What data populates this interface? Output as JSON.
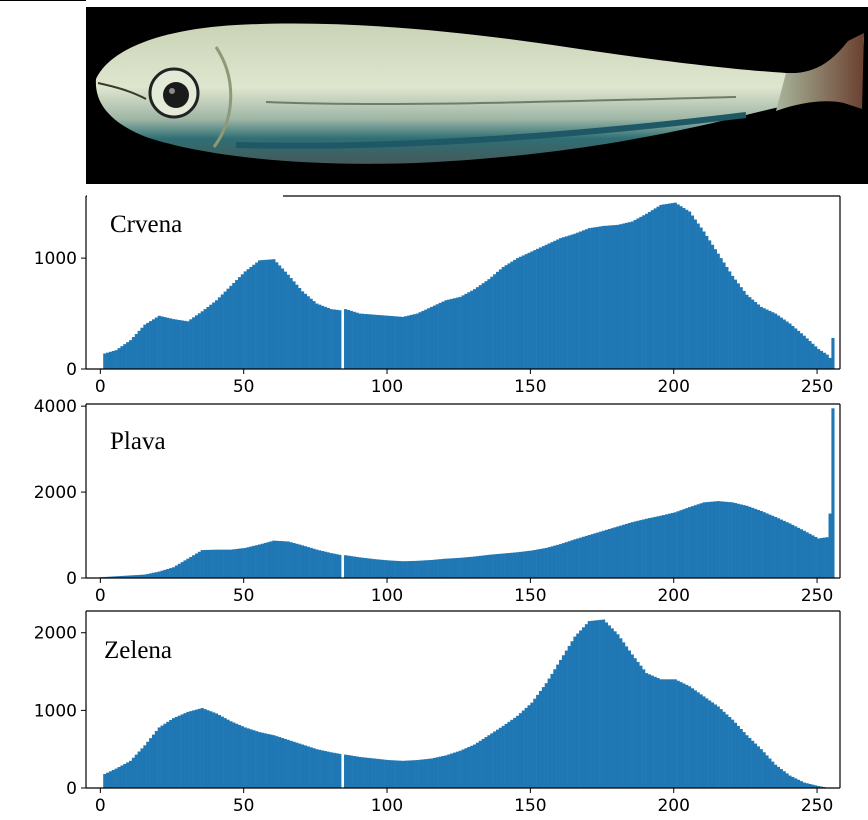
{
  "photo": {
    "subject": "fish",
    "bg": "#000000"
  },
  "colors": {
    "bar": "#1f77b4",
    "axis": "#000000",
    "bg": "#ffffff"
  },
  "chart_data": [
    {
      "type": "bar",
      "title": "Crvena",
      "xlabel": "",
      "ylabel": "",
      "xlim": [
        -5,
        258
      ],
      "ylim": [
        0,
        1560
      ],
      "xticks": [
        0,
        50,
        100,
        150,
        200,
        250
      ],
      "yticks": [
        0,
        1000
      ],
      "profile": [
        [
          0,
          5
        ],
        [
          1,
          140
        ],
        [
          5,
          170
        ],
        [
          10,
          260
        ],
        [
          15,
          400
        ],
        [
          20,
          480
        ],
        [
          25,
          450
        ],
        [
          30,
          430
        ],
        [
          35,
          520
        ],
        [
          40,
          620
        ],
        [
          45,
          750
        ],
        [
          50,
          880
        ],
        [
          55,
          980
        ],
        [
          60,
          990
        ],
        [
          65,
          850
        ],
        [
          70,
          700
        ],
        [
          75,
          590
        ],
        [
          80,
          540
        ],
        [
          83,
          530
        ],
        [
          84,
          0
        ],
        [
          85,
          540
        ],
        [
          90,
          500
        ],
        [
          95,
          490
        ],
        [
          100,
          480
        ],
        [
          105,
          470
        ],
        [
          110,
          500
        ],
        [
          115,
          560
        ],
        [
          120,
          620
        ],
        [
          125,
          650
        ],
        [
          130,
          720
        ],
        [
          135,
          810
        ],
        [
          140,
          920
        ],
        [
          145,
          1000
        ],
        [
          150,
          1060
        ],
        [
          155,
          1120
        ],
        [
          160,
          1180
        ],
        [
          165,
          1220
        ],
        [
          170,
          1270
        ],
        [
          175,
          1290
        ],
        [
          180,
          1300
        ],
        [
          185,
          1330
        ],
        [
          190,
          1400
        ],
        [
          195,
          1480
        ],
        [
          200,
          1500
        ],
        [
          205,
          1420
        ],
        [
          210,
          1240
        ],
        [
          215,
          1040
        ],
        [
          220,
          840
        ],
        [
          225,
          670
        ],
        [
          230,
          560
        ],
        [
          235,
          500
        ],
        [
          240,
          410
        ],
        [
          245,
          300
        ],
        [
          250,
          180
        ],
        [
          253,
          130
        ],
        [
          254,
          100
        ],
        [
          255,
          280
        ]
      ]
    },
    {
      "type": "bar",
      "title": "Plava",
      "xlabel": "",
      "ylabel": "",
      "xlim": [
        -5,
        258
      ],
      "ylim": [
        0,
        4050
      ],
      "xticks": [
        0,
        50,
        100,
        150,
        200,
        250
      ],
      "yticks": [
        0,
        2000,
        4000
      ],
      "profile": [
        [
          0,
          20
        ],
        [
          5,
          40
        ],
        [
          10,
          60
        ],
        [
          15,
          80
        ],
        [
          20,
          150
        ],
        [
          25,
          250
        ],
        [
          30,
          450
        ],
        [
          35,
          650
        ],
        [
          40,
          660
        ],
        [
          45,
          660
        ],
        [
          50,
          700
        ],
        [
          55,
          780
        ],
        [
          60,
          870
        ],
        [
          65,
          850
        ],
        [
          70,
          760
        ],
        [
          75,
          660
        ],
        [
          80,
          580
        ],
        [
          83,
          540
        ],
        [
          84,
          0
        ],
        [
          85,
          530
        ],
        [
          90,
          480
        ],
        [
          95,
          440
        ],
        [
          100,
          410
        ],
        [
          105,
          390
        ],
        [
          110,
          400
        ],
        [
          115,
          420
        ],
        [
          120,
          450
        ],
        [
          125,
          470
        ],
        [
          130,
          500
        ],
        [
          135,
          540
        ],
        [
          140,
          570
        ],
        [
          145,
          600
        ],
        [
          150,
          640
        ],
        [
          155,
          700
        ],
        [
          160,
          790
        ],
        [
          165,
          900
        ],
        [
          170,
          1000
        ],
        [
          175,
          1100
        ],
        [
          180,
          1200
        ],
        [
          185,
          1300
        ],
        [
          190,
          1380
        ],
        [
          195,
          1450
        ],
        [
          200,
          1530
        ],
        [
          205,
          1650
        ],
        [
          210,
          1760
        ],
        [
          215,
          1790
        ],
        [
          220,
          1760
        ],
        [
          225,
          1680
        ],
        [
          230,
          1560
        ],
        [
          235,
          1420
        ],
        [
          240,
          1270
        ],
        [
          245,
          1100
        ],
        [
          250,
          920
        ],
        [
          253,
          950
        ],
        [
          254,
          1500
        ],
        [
          255,
          3950
        ]
      ]
    },
    {
      "type": "bar",
      "title": "Zelena",
      "xlabel": "",
      "ylabel": "",
      "xlim": [
        -5,
        258
      ],
      "ylim": [
        0,
        2280
      ],
      "xticks": [
        0,
        50,
        100,
        150,
        200,
        250
      ],
      "yticks": [
        0,
        1000,
        2000
      ],
      "profile": [
        [
          0,
          5
        ],
        [
          1,
          180
        ],
        [
          5,
          250
        ],
        [
          10,
          350
        ],
        [
          15,
          550
        ],
        [
          20,
          780
        ],
        [
          25,
          900
        ],
        [
          30,
          980
        ],
        [
          35,
          1030
        ],
        [
          40,
          960
        ],
        [
          45,
          860
        ],
        [
          50,
          780
        ],
        [
          55,
          720
        ],
        [
          60,
          680
        ],
        [
          65,
          620
        ],
        [
          70,
          560
        ],
        [
          75,
          500
        ],
        [
          80,
          460
        ],
        [
          83,
          440
        ],
        [
          84,
          0
        ],
        [
          85,
          430
        ],
        [
          90,
          400
        ],
        [
          95,
          380
        ],
        [
          100,
          360
        ],
        [
          105,
          350
        ],
        [
          110,
          360
        ],
        [
          115,
          380
        ],
        [
          120,
          420
        ],
        [
          125,
          480
        ],
        [
          130,
          560
        ],
        [
          135,
          680
        ],
        [
          140,
          800
        ],
        [
          145,
          930
        ],
        [
          150,
          1100
        ],
        [
          155,
          1350
        ],
        [
          160,
          1650
        ],
        [
          165,
          1950
        ],
        [
          170,
          2150
        ],
        [
          175,
          2170
        ],
        [
          180,
          1980
        ],
        [
          185,
          1720
        ],
        [
          190,
          1480
        ],
        [
          195,
          1400
        ],
        [
          200,
          1400
        ],
        [
          205,
          1310
        ],
        [
          210,
          1180
        ],
        [
          215,
          1050
        ],
        [
          220,
          880
        ],
        [
          225,
          680
        ],
        [
          230,
          500
        ],
        [
          235,
          300
        ],
        [
          240,
          160
        ],
        [
          245,
          70
        ],
        [
          250,
          25
        ],
        [
          253,
          5
        ],
        [
          255,
          0
        ]
      ]
    }
  ]
}
